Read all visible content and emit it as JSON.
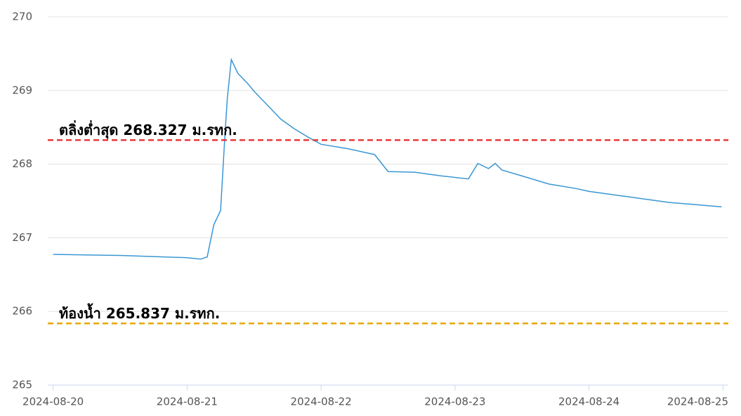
{
  "chart_data": {
    "type": "line",
    "x": [
      0,
      0.5,
      1.0,
      1.1,
      1.15,
      1.2,
      1.25,
      1.28,
      1.3,
      1.33,
      1.38,
      1.45,
      1.5,
      1.6,
      1.7,
      1.8,
      1.9,
      2.0,
      2.2,
      2.4,
      2.5,
      2.7,
      2.9,
      3.0,
      3.1,
      3.17,
      3.25,
      3.3,
      3.35,
      3.5,
      3.7,
      3.9,
      4.0,
      4.2,
      4.4,
      4.6,
      4.8,
      4.99
    ],
    "series": [
      {
        "color": "#3a97d4",
        "values": [
          266.775,
          266.76,
          266.73,
          266.71,
          266.74,
          267.18,
          267.37,
          268.32,
          268.89,
          269.42,
          269.23,
          269.1,
          268.99,
          268.8,
          268.61,
          268.48,
          268.37,
          268.27,
          268.21,
          268.13,
          267.9,
          267.89,
          267.84,
          267.82,
          267.8,
          268.01,
          267.94,
          268.01,
          267.92,
          267.84,
          267.73,
          267.67,
          267.63,
          267.58,
          267.53,
          267.48,
          267.45,
          267.42
        ]
      }
    ],
    "xlim": [
      -0.04,
      5.04
    ],
    "xticks": [
      {
        "value": 0,
        "label": "2024-08-20"
      },
      {
        "value": 1,
        "label": "2024-08-21"
      },
      {
        "value": 2,
        "label": "2024-08-22"
      },
      {
        "value": 3,
        "label": "2024-08-23"
      },
      {
        "value": 4,
        "label": "2024-08-24"
      },
      {
        "value": 5,
        "label": "2024-08-25"
      }
    ],
    "ylim": [
      265,
      270
    ],
    "yticks": [
      265,
      266,
      267,
      268,
      269,
      270
    ],
    "grid": true,
    "reference_lines": [
      {
        "value": 268.327,
        "label": "ตลิ่งต่ำสุด 268.327 ม.รทก.",
        "color": "#e83a3a"
      },
      {
        "value": 265.837,
        "label": "ท้องน้ำ 265.837 ม.รทก.",
        "color": "#e8a800"
      }
    ]
  }
}
